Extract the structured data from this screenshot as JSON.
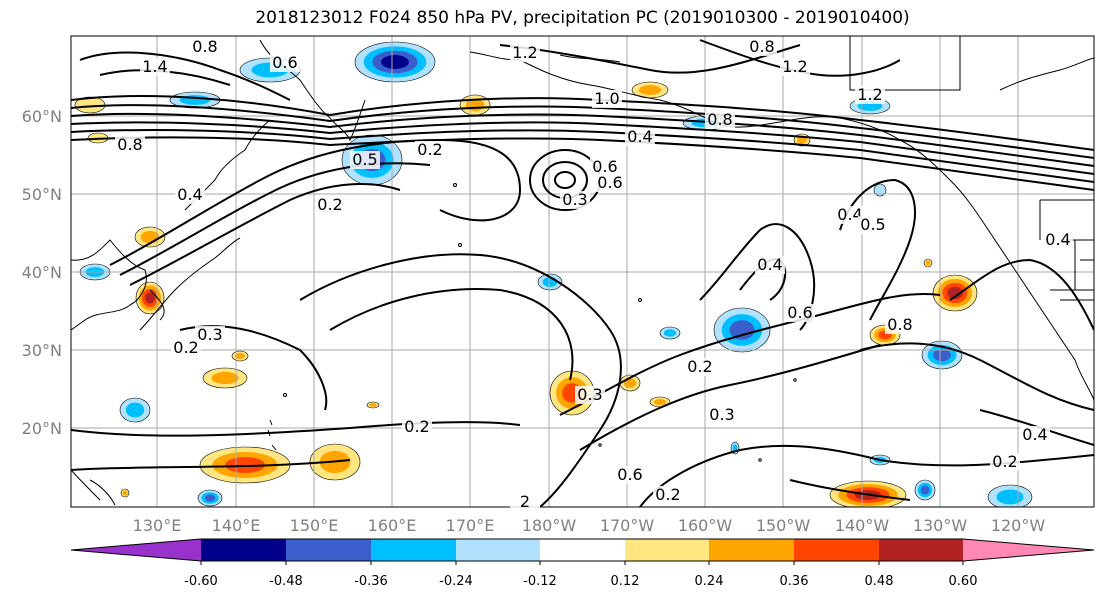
{
  "title": "2018123012 F024 850 hPa PV, precipitation PC (2019010300 - 2019010400)",
  "lon_ticks": [
    "130°E",
    "140°E",
    "150°E",
    "160°E",
    "170°E",
    "180°W",
    "170°W",
    "160°W",
    "150°W",
    "140°W",
    "130°W",
    "120°W"
  ],
  "lat_ticks": [
    "20°N",
    "30°N",
    "40°N",
    "50°N",
    "60°N"
  ],
  "colorbar": {
    "ticks": [
      "-0.60",
      "-0.48",
      "-0.36",
      "-0.24",
      "-0.12",
      "0.12",
      "0.24",
      "0.36",
      "0.48",
      "0.60"
    ],
    "colors": [
      "#9932CC",
      "#00008B",
      "#3A5FCD",
      "#00BFFF",
      "#B0E2FF",
      "#FFFFFF",
      "#FFE680",
      "#FFA500",
      "#FF4500",
      "#B22222",
      "#FF88B4"
    ]
  },
  "contour_labels": [
    "0.8",
    "0.6",
    "1.2",
    "0.8",
    "1.4",
    "1.2",
    "1.2",
    "1.0",
    "0.4",
    "0.8",
    "0.2",
    "0.5",
    "0.8",
    "0.4",
    "0.2",
    "0.3",
    "0.6",
    "0.4",
    "0.5",
    "0.4",
    "0.4",
    "0.6",
    "0.8",
    "0.6",
    "0.3",
    "0.2",
    "0.3",
    "0.2",
    "0.3",
    "0.2",
    "0.4",
    "0.2",
    "0.2",
    "2",
    "0.6"
  ]
}
